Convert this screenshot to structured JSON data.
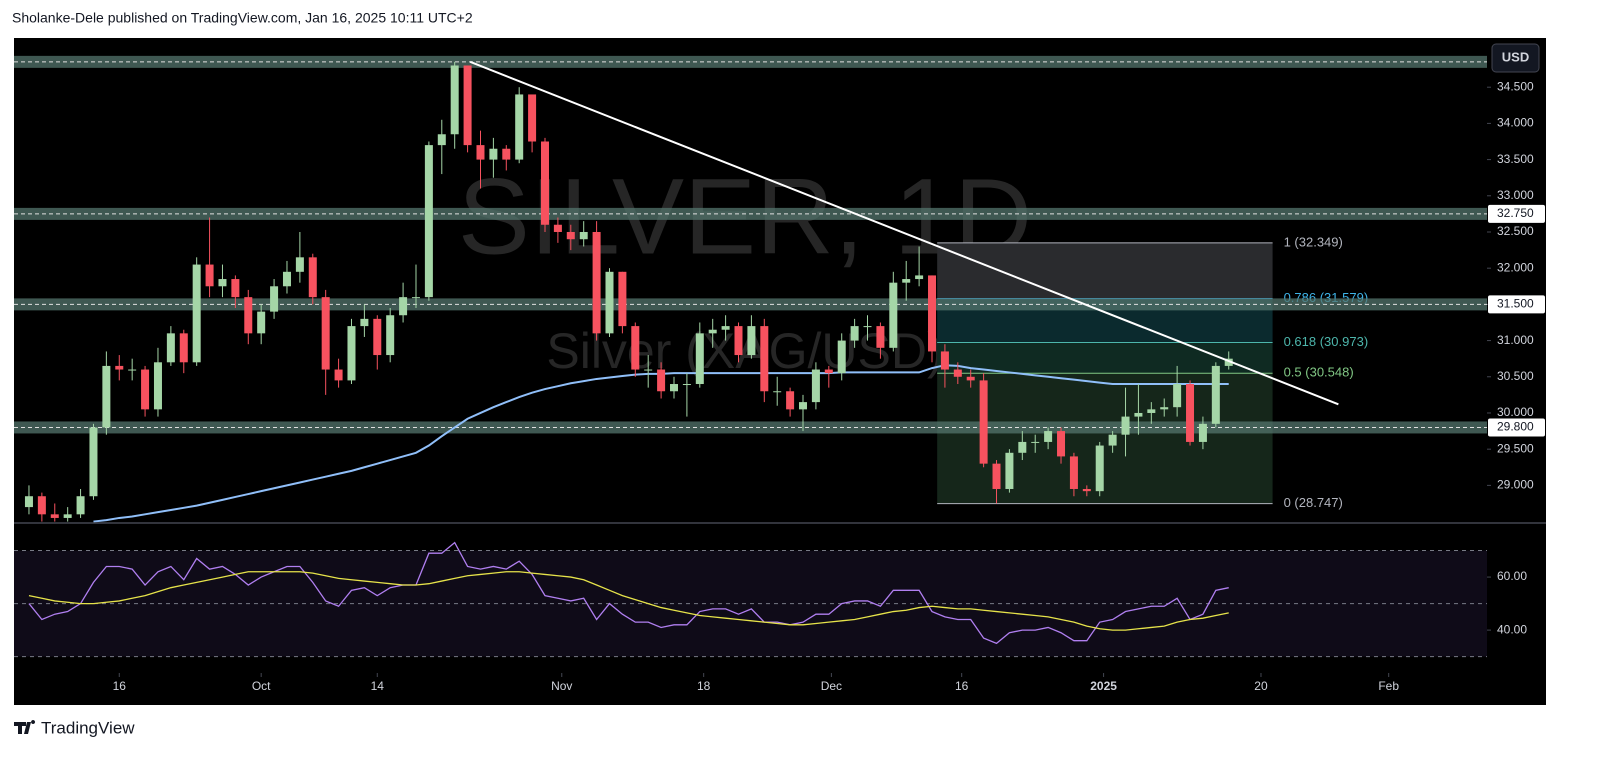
{
  "header": {
    "text": "Sholanke-Dele published on TradingView.com, Jan 16, 2025 10:11 UTC+2"
  },
  "footer": {
    "brand": "TradingView"
  },
  "chart_data": [
    {
      "type": "candlestick",
      "watermark_symbol": "SILVER, 1D",
      "watermark_name": "Silver (XAG/USD)",
      "currency": "USD",
      "up_color": "#a5d6a7",
      "down_color": "#f7525f",
      "open": [
        28.7,
        28.85,
        28.6,
        28.55,
        28.6,
        28.85,
        29.8,
        30.65,
        30.6,
        30.6,
        30.05,
        30.7,
        31.1,
        30.7,
        32.05,
        31.75,
        31.85,
        31.6,
        31.1,
        31.4,
        31.75,
        31.95,
        32.15,
        31.6,
        30.6,
        30.45,
        31.2,
        31.3,
        30.8,
        31.35,
        31.6,
        31.6,
        33.7,
        33.85,
        34.8,
        33.7,
        33.5,
        33.65,
        33.5,
        34.4,
        33.75,
        32.6,
        32.5,
        32.4,
        32.5,
        31.1,
        31.95,
        31.2,
        30.6,
        30.6,
        30.3,
        30.4,
        30.4,
        31.1,
        31.15,
        31.2,
        30.8,
        31.2,
        30.3,
        30.3,
        30.05,
        30.15,
        30.6,
        30.55,
        31.0,
        31.2,
        31.2,
        30.9,
        31.8,
        31.85,
        31.9,
        30.85,
        30.6,
        30.5,
        30.45,
        29.3,
        28.95,
        29.45,
        29.6,
        29.6,
        29.75,
        29.4,
        28.95,
        28.92,
        29.55,
        29.7,
        29.95,
        30.0,
        30.05,
        30.08,
        30.4,
        29.6,
        29.85,
        30.65
      ],
      "high": [
        29.0,
        28.9,
        28.75,
        28.7,
        28.95,
        29.85,
        30.85,
        30.8,
        30.75,
        30.65,
        30.9,
        31.2,
        31.15,
        32.15,
        32.7,
        32.05,
        31.9,
        31.7,
        31.5,
        31.85,
        32.1,
        32.5,
        32.2,
        31.7,
        30.75,
        31.3,
        31.5,
        31.35,
        31.45,
        31.8,
        32.05,
        33.75,
        34.05,
        34.85,
        34.8,
        33.9,
        33.8,
        33.7,
        34.5,
        34.35,
        33.8,
        32.7,
        32.6,
        32.65,
        32.65,
        32.0,
        31.95,
        31.25,
        30.8,
        30.7,
        30.5,
        30.55,
        31.25,
        31.3,
        31.35,
        31.25,
        31.35,
        31.3,
        30.5,
        30.35,
        30.25,
        30.7,
        30.65,
        31.1,
        31.3,
        31.35,
        31.25,
        31.95,
        32.1,
        32.3,
        31.9,
        30.95,
        30.7,
        30.6,
        30.55,
        29.35,
        29.5,
        29.75,
        29.7,
        29.8,
        29.8,
        29.45,
        29.0,
        29.6,
        29.75,
        30.35,
        30.4,
        30.15,
        30.2,
        30.65,
        30.45,
        29.95,
        30.7,
        30.85
      ],
      "low": [
        28.6,
        28.5,
        28.5,
        28.5,
        28.55,
        28.8,
        29.7,
        30.45,
        30.45,
        29.95,
        29.95,
        30.65,
        30.55,
        30.65,
        31.6,
        31.6,
        31.45,
        30.95,
        30.95,
        31.3,
        31.65,
        31.8,
        31.5,
        30.25,
        30.35,
        30.4,
        31.05,
        30.6,
        30.7,
        31.25,
        31.45,
        31.55,
        33.3,
        33.65,
        33.6,
        33.1,
        33.25,
        33.35,
        33.45,
        33.6,
        32.5,
        32.35,
        32.25,
        32.3,
        31.0,
        31.05,
        31.1,
        30.5,
        30.35,
        30.2,
        30.2,
        29.95,
        30.35,
        30.9,
        31.0,
        30.7,
        30.75,
        30.15,
        30.1,
        29.95,
        29.75,
        30.05,
        30.35,
        30.45,
        30.9,
        31.0,
        30.75,
        30.85,
        31.55,
        31.75,
        30.7,
        30.35,
        30.4,
        30.35,
        29.25,
        28.75,
        28.9,
        29.35,
        29.45,
        29.5,
        29.3,
        28.85,
        28.85,
        28.85,
        29.45,
        29.4,
        29.7,
        29.85,
        29.95,
        29.95,
        29.55,
        29.5,
        29.8,
        30.6
      ],
      "close": [
        28.85,
        28.6,
        28.55,
        28.6,
        28.85,
        29.8,
        30.65,
        30.6,
        30.6,
        30.05,
        30.7,
        31.1,
        30.7,
        32.05,
        31.75,
        31.85,
        31.6,
        31.1,
        31.4,
        31.75,
        31.95,
        32.15,
        31.6,
        30.6,
        30.45,
        31.2,
        31.3,
        30.8,
        31.35,
        31.6,
        31.6,
        33.7,
        33.85,
        34.8,
        33.7,
        33.5,
        33.65,
        33.5,
        34.4,
        33.75,
        32.6,
        32.5,
        32.4,
        32.5,
        31.1,
        31.95,
        31.2,
        30.6,
        30.6,
        30.3,
        30.4,
        30.4,
        31.1,
        31.15,
        31.2,
        30.8,
        31.2,
        30.3,
        30.3,
        30.05,
        30.15,
        30.6,
        30.55,
        31.0,
        31.2,
        31.2,
        30.9,
        31.8,
        31.85,
        31.9,
        30.85,
        30.6,
        30.5,
        30.45,
        29.3,
        28.95,
        29.45,
        29.6,
        29.6,
        29.75,
        29.4,
        28.95,
        28.92,
        29.55,
        29.7,
        29.95,
        30.0,
        30.05,
        30.08,
        30.4,
        29.6,
        29.85,
        30.65,
        30.75
      ],
      "ma": {
        "color": "#90bff9",
        "values": [
          null,
          null,
          null,
          null,
          null,
          28.5,
          28.52,
          28.55,
          28.57,
          28.6,
          28.63,
          28.66,
          28.69,
          28.72,
          28.76,
          28.8,
          28.84,
          28.88,
          28.92,
          28.96,
          29.0,
          29.04,
          29.08,
          29.12,
          29.16,
          29.2,
          29.25,
          29.3,
          29.35,
          29.4,
          29.45,
          29.55,
          29.68,
          29.8,
          29.92,
          30.0,
          30.08,
          30.15,
          30.22,
          30.28,
          30.33,
          30.37,
          30.41,
          30.44,
          30.47,
          30.49,
          30.51,
          30.53,
          30.54,
          30.54,
          30.55,
          30.55,
          30.55,
          30.55,
          30.55,
          30.55,
          30.55,
          30.55,
          30.55,
          30.55,
          30.55,
          30.55,
          30.55,
          30.56,
          30.56,
          30.56,
          30.56,
          30.56,
          30.56,
          30.56,
          30.62,
          30.66,
          30.65,
          30.62,
          30.6,
          30.58,
          30.56,
          30.54,
          30.52,
          30.5,
          30.48,
          30.46,
          30.44,
          30.42,
          30.4,
          30.4,
          30.4,
          30.4,
          30.4,
          30.4,
          30.4,
          30.4,
          30.4,
          30.4
        ]
      },
      "xlim": [
        -1.16,
        113.02
      ],
      "xticks": [
        {
          "value": 7,
          "label": "16"
        },
        {
          "value": 18,
          "label": "Oct"
        },
        {
          "value": 27,
          "label": "14"
        },
        {
          "value": 41.3,
          "label": "Nov"
        },
        {
          "value": 52.3,
          "label": "18"
        },
        {
          "value": 62.2,
          "label": "Dec"
        },
        {
          "value": 72.3,
          "label": "16"
        },
        {
          "value": 83.3,
          "label": "2025"
        },
        {
          "value": 95.5,
          "label": "20"
        },
        {
          "value": 105.4,
          "label": "Feb"
        }
      ],
      "ylim": [
        28.494,
        35.152
      ],
      "yticks": [
        {
          "value": 29,
          "label": "29.000"
        },
        {
          "value": 29.5,
          "label": "29.500"
        },
        {
          "value": 30,
          "label": "30.000"
        },
        {
          "value": 30.5,
          "label": "30.500"
        },
        {
          "value": 31,
          "label": "31.000"
        },
        {
          "value": 31.5,
          "label": "31.500"
        },
        {
          "value": 32,
          "label": "32.000"
        },
        {
          "value": 32.5,
          "label": "32.500"
        },
        {
          "value": 33,
          "label": "33.000"
        },
        {
          "value": 33.5,
          "label": "33.500"
        },
        {
          "value": 34,
          "label": "34.000"
        },
        {
          "value": 34.5,
          "label": "34.500"
        }
      ],
      "grid": false,
      "levels": [
        34.85,
        {
          "value": 32.75,
          "label": "32.750"
        },
        {
          "value": 31.5,
          "label": "31.500"
        },
        {
          "value": 29.8,
          "label": "29.800"
        }
      ],
      "level_color": "#54756e",
      "trendline": {
        "color": "#ffffff",
        "x": [
          34.2,
          101.5
        ],
        "y": [
          34.85,
          30.12
        ]
      },
      "fib": {
        "x": [
          70.4,
          96.4
        ],
        "levels": [
          {
            "value": 32.349,
            "label": "1 (32.349)",
            "color": "#b2b5be",
            "fill": "#2a2b2e"
          },
          {
            "value": 31.579,
            "label": "0.786 (31.579)",
            "color": "#3fb4e8",
            "fill": "#0b2a2e"
          },
          {
            "value": 30.973,
            "label": "0.618 (30.973)",
            "color": "#4db6ac",
            "fill": "#0f2a22"
          },
          {
            "value": 30.548,
            "label": "0.5 (30.548)",
            "color": "#81c784",
            "fill": "#15261a"
          },
          {
            "value": 28.747,
            "label": "0 (28.747)",
            "color": "#b2b5be"
          }
        ]
      }
    },
    {
      "type": "line",
      "ylim": [
        24.2,
        77
      ],
      "yticks": [
        {
          "value": 60,
          "label": "60.00"
        },
        {
          "value": 40,
          "label": "40.00"
        }
      ],
      "bands": [
        70,
        50,
        30
      ],
      "band_fill": "#7e57c2",
      "series": [
        {
          "color": "#b07ff0",
          "values": [
            50,
            44,
            46,
            47,
            50,
            58,
            64,
            64,
            63,
            57,
            62,
            64,
            59,
            67,
            63,
            64,
            61,
            57,
            60,
            62,
            64,
            64,
            58,
            51,
            49,
            55,
            56,
            53,
            56,
            57,
            57,
            69,
            69,
            73,
            64,
            63,
            64,
            63,
            66,
            61,
            53,
            52,
            51,
            52,
            44,
            50,
            46,
            43,
            43,
            41,
            42,
            42,
            47,
            48,
            48,
            46,
            48,
            43,
            43,
            42,
            43,
            46,
            46,
            50,
            51,
            51,
            49,
            55,
            55,
            55,
            47,
            45,
            44,
            44,
            37,
            35,
            39,
            40,
            40,
            41,
            39,
            36,
            36,
            43,
            44,
            47,
            48,
            49,
            49,
            52,
            44,
            46,
            55,
            56
          ]
        },
        {
          "color": "#e6e34a",
          "values": [
            53,
            52,
            51,
            50.5,
            50,
            50,
            50.5,
            51,
            52,
            53,
            54.5,
            56,
            57,
            58,
            59,
            60,
            61,
            62,
            62,
            62,
            62,
            62,
            61.5,
            60.5,
            59.5,
            59,
            58.5,
            58,
            57.5,
            57,
            57,
            57.5,
            58.5,
            59.5,
            60.5,
            61,
            61.5,
            62,
            62,
            61.5,
            61,
            60.5,
            60,
            59,
            57,
            55,
            53,
            51.5,
            50,
            48.5,
            47.5,
            46.5,
            45.5,
            45,
            44.5,
            44,
            43.5,
            43,
            42.5,
            42,
            42,
            42.5,
            43,
            43.5,
            44,
            45,
            46,
            47,
            47.5,
            48.5,
            49,
            48.5,
            48,
            48,
            47.5,
            47,
            46.5,
            46,
            45.5,
            45,
            44,
            43,
            41.5,
            40.5,
            40,
            40,
            40.5,
            41,
            41.5,
            43,
            44,
            44.5,
            45.5,
            46.5
          ]
        }
      ]
    }
  ]
}
